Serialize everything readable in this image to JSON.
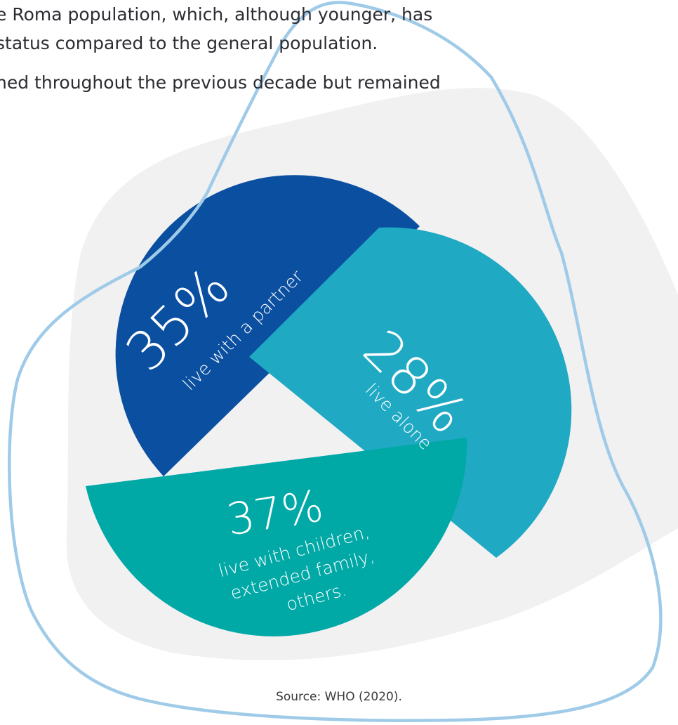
{
  "intro": {
    "line1": "e Roma population, which, although younger, has",
    "line2": "status compared to the general population.",
    "line3": "ned throughout the previous decade but remained"
  },
  "colors": {
    "background_blob": "#f1f1f2",
    "outline_loop": "#9fcbe8",
    "partner": "#0b4fa0",
    "alone": "#1fa9c3",
    "children": "#00a8a6"
  },
  "chart_data": {
    "type": "pie",
    "slices": [
      {
        "key": "partner",
        "value": 35,
        "value_label": "35%",
        "label_lines": [
          "live with a partner"
        ]
      },
      {
        "key": "alone",
        "value": 28,
        "value_label": "28%",
        "label_lines": [
          "live alone"
        ]
      },
      {
        "key": "children",
        "value": 37,
        "value_label": "37%",
        "label_lines": [
          "live with children,",
          "extended family,",
          "others."
        ]
      }
    ]
  },
  "source": "Source: WHO (2020)."
}
